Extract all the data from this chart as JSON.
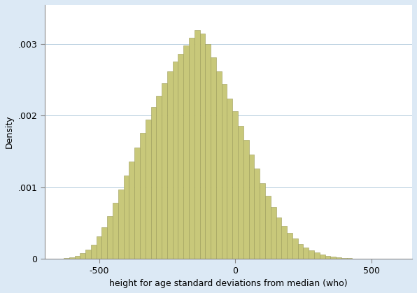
{
  "title": "",
  "xlabel": "height for age standard deviations from median (who)",
  "ylabel": "Density",
  "bar_color": "#c8c87a",
  "bar_edge_color": "#9a9a58",
  "background_color": "#dce9f5",
  "plot_bg_color": "#ffffff",
  "xlim": [
    -700,
    650
  ],
  "ylim": [
    0,
    0.00355
  ],
  "yticks": [
    0,
    0.001,
    0.002,
    0.003
  ],
  "ytick_labels": [
    "0",
    ".001",
    ".002",
    ".003"
  ],
  "xticks": [
    -500,
    0,
    500
  ],
  "bin_width": 20,
  "bin_centers": [
    -620,
    -600,
    -580,
    -560,
    -540,
    -520,
    -500,
    -480,
    -460,
    -440,
    -420,
    -400,
    -380,
    -360,
    -340,
    -320,
    -300,
    -280,
    -260,
    -240,
    -220,
    -200,
    -180,
    -160,
    -140,
    -120,
    -100,
    -80,
    -60,
    -40,
    -20,
    0,
    20,
    40,
    60,
    80,
    100,
    120,
    140,
    160,
    180,
    200,
    220,
    240,
    260,
    280,
    300,
    320,
    340,
    360,
    380,
    400,
    420,
    440,
    460,
    480
  ],
  "densities": [
    8e-06,
    2e-05,
    4e-05,
    7.5e-05,
    0.00013,
    0.0002,
    0.00031,
    0.00044,
    0.0006,
    0.00078,
    0.00097,
    0.00116,
    0.00136,
    0.00156,
    0.00176,
    0.00195,
    0.00212,
    0.00228,
    0.00245,
    0.00262,
    0.00276,
    0.00287,
    0.00298,
    0.00309,
    0.0032,
    0.00315,
    0.003,
    0.00282,
    0.00262,
    0.00244,
    0.00224,
    0.00206,
    0.00186,
    0.00166,
    0.00146,
    0.00126,
    0.00106,
    0.00088,
    0.00072,
    0.00058,
    0.00046,
    0.00036,
    0.00028,
    0.00021,
    0.00016,
    0.000118,
    8.5e-05,
    6e-05,
    4.2e-05,
    2.8e-05,
    1.8e-05,
    1.1e-05,
    6e-06,
    3e-06,
    1e-06,
    5e-07
  ]
}
